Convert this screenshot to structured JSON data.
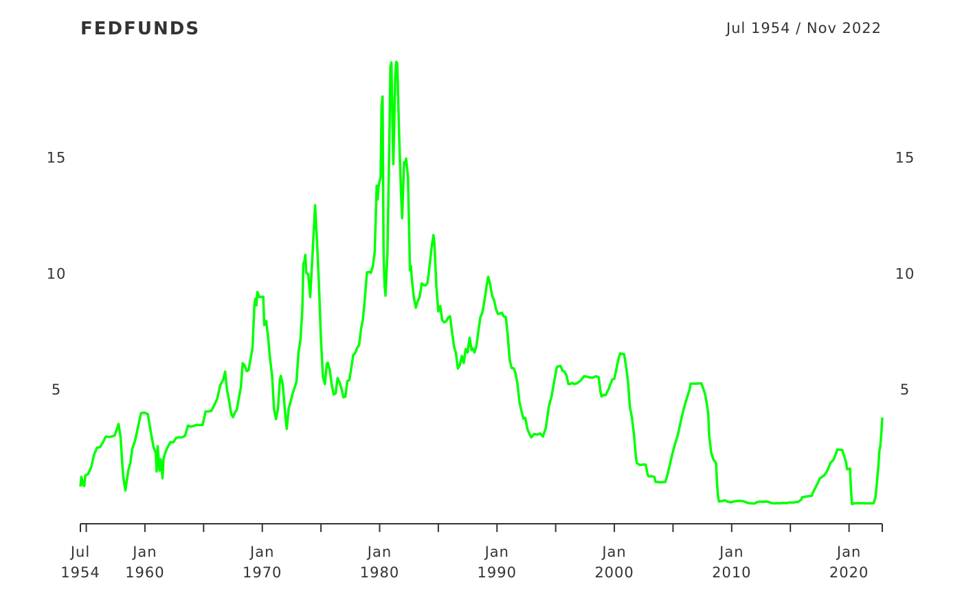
{
  "chart_data": {
    "type": "line",
    "title": "FEDFUNDS",
    "subtitle": "Jul 1954 / Nov 2022",
    "color": "#00ff00",
    "xlim": [
      "1954-07",
      "2022-11"
    ],
    "ylim": [
      -0.8,
      19.4
    ],
    "yticks": [
      5,
      10,
      15
    ],
    "xticks": [
      {
        "value": "1954-07",
        "label": "Jul 1954"
      },
      {
        "value": "1960-01",
        "label": "Jan 1960"
      },
      {
        "value": "1970-01",
        "label": "Jan 1970"
      },
      {
        "value": "1980-01",
        "label": "Jan 1980"
      },
      {
        "value": "1990-01",
        "label": "Jan 1990"
      },
      {
        "value": "2000-01",
        "label": "Jan 2000"
      },
      {
        "value": "2010-01",
        "label": "Jan 2010"
      },
      {
        "value": "2020-01",
        "label": "Jan 2020"
      }
    ],
    "xticks_minor": [
      "1955-01",
      "1965-01",
      "1975-01",
      "1985-01",
      "1995-01",
      "2005-01",
      "2015-01",
      "2022-11"
    ],
    "x": [
      "1954-07",
      "1954-08",
      "1954-09",
      "1954-10",
      "1954-11",
      "1954-12",
      "1955-03",
      "1955-06",
      "1955-09",
      "1955-12",
      "1956-03",
      "1956-06",
      "1956-09",
      "1956-12",
      "1957-03",
      "1957-06",
      "1957-08",
      "1957-10",
      "1957-12",
      "1958-02",
      "1958-03",
      "1958-05",
      "1958-06",
      "1958-08",
      "1958-10",
      "1958-12",
      "1959-03",
      "1959-06",
      "1959-09",
      "1959-12",
      "1960-02",
      "1960-04",
      "1960-06",
      "1960-08",
      "1960-10",
      "1960-12",
      "1961-01",
      "1961-02",
      "1961-03",
      "1961-04",
      "1961-05",
      "1961-06",
      "1961-07",
      "1961-08",
      "1961-10",
      "1961-12",
      "1962-03",
      "1962-06",
      "1962-09",
      "1962-12",
      "1963-03",
      "1963-06",
      "1963-09",
      "1963-12",
      "1964-03",
      "1964-06",
      "1964-09",
      "1964-12",
      "1965-03",
      "1965-06",
      "1965-09",
      "1965-12",
      "1966-03",
      "1966-06",
      "1966-09",
      "1966-11",
      "1967-01",
      "1967-03",
      "1967-05",
      "1967-07",
      "1967-09",
      "1967-11",
      "1968-01",
      "1968-03",
      "1968-05",
      "1968-07",
      "1968-09",
      "1968-11",
      "1969-01",
      "1969-03",
      "1969-05",
      "1969-06",
      "1969-07",
      "1969-08",
      "1969-10",
      "1969-12",
      "1970-01",
      "1970-02",
      "1970-03",
      "1970-05",
      "1970-07",
      "1970-09",
      "1970-11",
      "1971-01",
      "1971-03",
      "1971-05",
      "1971-07",
      "1971-08",
      "1971-10",
      "1971-12",
      "1972-02",
      "1972-04",
      "1972-06",
      "1972-08",
      "1972-10",
      "1972-12",
      "1973-02",
      "1973-04",
      "1973-06",
      "1973-07",
      "1973-08",
      "1973-09",
      "1973-10",
      "1973-12",
      "1974-02",
      "1974-04",
      "1974-07",
      "1974-09",
      "1974-11",
      "1975-01",
      "1975-03",
      "1975-05",
      "1975-07",
      "1975-08",
      "1975-10",
      "1975-12",
      "1976-02",
      "1976-04",
      "1976-06",
      "1976-08",
      "1976-10",
      "1976-12",
      "1977-02",
      "1977-04",
      "1977-06",
      "1977-08",
      "1977-10",
      "1977-12",
      "1978-02",
      "1978-04",
      "1978-06",
      "1978-08",
      "1978-10",
      "1978-12",
      "1979-02",
      "1979-04",
      "1979-06",
      "1979-08",
      "1979-10",
      "1979-11",
      "1979-12",
      "1980-02",
      "1980-03",
      "1980-04",
      "1980-05",
      "1980-06",
      "1980-07",
      "1980-09",
      "1980-11",
      "1980-12",
      "1981-01",
      "1981-03",
      "1981-05",
      "1981-06",
      "1981-07",
      "1981-09",
      "1981-11",
      "1981-12",
      "1982-02",
      "1982-03",
      "1982-04",
      "1982-06",
      "1982-08",
      "1982-09",
      "1982-10",
      "1982-12",
      "1983-02",
      "1983-04",
      "1983-06",
      "1983-08",
      "1983-10",
      "1983-12",
      "1984-02",
      "1984-04",
      "1984-06",
      "1984-08",
      "1984-09",
      "1984-11",
      "1985-01",
      "1985-03",
      "1985-05",
      "1985-07",
      "1985-09",
      "1985-11",
      "1986-01",
      "1986-03",
      "1986-05",
      "1986-07",
      "1986-09",
      "1986-11",
      "1987-01",
      "1987-03",
      "1987-05",
      "1987-07",
      "1987-09",
      "1987-11",
      "1987-12",
      "1988-02",
      "1988-04",
      "1988-06",
      "1988-08",
      "1988-10",
      "1988-12",
      "1989-02",
      "1989-04",
      "1989-06",
      "1989-08",
      "1989-10",
      "1989-12",
      "1990-02",
      "1990-04",
      "1990-06",
      "1990-08",
      "1990-10",
      "1990-12",
      "1991-02",
      "1991-04",
      "1991-06",
      "1991-08",
      "1991-10",
      "1991-12",
      "1992-02",
      "1992-04",
      "1992-06",
      "1992-08",
      "1992-10",
      "1992-12",
      "1993-03",
      "1993-06",
      "1993-09",
      "1993-12",
      "1994-03",
      "1994-06",
      "1994-09",
      "1994-12",
      "1995-02",
      "1995-03",
      "1995-06",
      "1995-08",
      "1995-10",
      "1995-12",
      "1996-02",
      "1996-04",
      "1996-06",
      "1996-08",
      "1996-10",
      "1996-12",
      "1997-03",
      "1997-06",
      "1997-09",
      "1997-12",
      "1998-03",
      "1998-06",
      "1998-09",
      "1998-11",
      "1998-12",
      "1999-02",
      "1999-04",
      "1999-07",
      "1999-09",
      "1999-11",
      "2000-01",
      "2000-03",
      "2000-05",
      "2000-07",
      "2000-09",
      "2000-11",
      "2001-01",
      "2001-03",
      "2001-05",
      "2001-07",
      "2001-09",
      "2001-11",
      "2001-12",
      "2002-03",
      "2002-06",
      "2002-09",
      "2002-11",
      "2002-12",
      "2003-03",
      "2003-06",
      "2003-07",
      "2003-12",
      "2004-05",
      "2004-07",
      "2004-09",
      "2004-12",
      "2005-03",
      "2005-06",
      "2005-09",
      "2005-12",
      "2006-03",
      "2006-06",
      "2006-07",
      "2006-12",
      "2007-06",
      "2007-08",
      "2007-10",
      "2007-12",
      "2008-01",
      "2008-02",
      "2008-04",
      "2008-06",
      "2008-09",
      "2008-10",
      "2008-11",
      "2008-12",
      "2009-03",
      "2009-06",
      "2009-09",
      "2009-12",
      "2010-03",
      "2010-06",
      "2010-09",
      "2010-12",
      "2011-03",
      "2011-06",
      "2011-09",
      "2011-12",
      "2012-03",
      "2012-06",
      "2012-09",
      "2012-12",
      "2013-03",
      "2013-06",
      "2013-09",
      "2013-12",
      "2014-03",
      "2014-06",
      "2014-09",
      "2014-12",
      "2015-03",
      "2015-06",
      "2015-09",
      "2015-12",
      "2016-01",
      "2016-06",
      "2016-11",
      "2016-12",
      "2017-03",
      "2017-06",
      "2017-07",
      "2017-12",
      "2018-03",
      "2018-06",
      "2018-09",
      "2018-12",
      "2019-01",
      "2019-06",
      "2019-08",
      "2019-10",
      "2019-11",
      "2020-02",
      "2020-03",
      "2020-04",
      "2020-06",
      "2020-12",
      "2021-06",
      "2021-12",
      "2022-02",
      "2022-03",
      "2022-04",
      "2022-05",
      "2022-06",
      "2022-07",
      "2022-08",
      "2022-09",
      "2022-10",
      "2022-11"
    ],
    "values": [
      0.8,
      1.22,
      1.06,
      0.85,
      0.83,
      1.28,
      1.35,
      1.64,
      2.18,
      2.48,
      2.5,
      2.71,
      2.96,
      2.94,
      2.96,
      3.0,
      3.24,
      3.5,
      2.98,
      1.67,
      1.2,
      0.63,
      0.93,
      1.5,
      1.8,
      2.42,
      2.8,
      3.39,
      3.97,
      3.99,
      3.97,
      3.92,
      3.39,
      2.92,
      2.47,
      2.27,
      1.45,
      2.54,
      2.02,
      1.49,
      1.98,
      1.73,
      1.16,
      2.0,
      2.29,
      2.48,
      2.72,
      2.71,
      2.9,
      2.93,
      2.92,
      2.99,
      3.43,
      3.38,
      3.42,
      3.46,
      3.45,
      3.46,
      4.04,
      4.04,
      4.07,
      4.32,
      4.6,
      5.17,
      5.4,
      5.76,
      4.94,
      4.53,
      3.98,
      3.79,
      3.99,
      4.12,
      4.61,
      5.05,
      6.12,
      6.02,
      5.78,
      5.82,
      6.3,
      6.79,
      8.67,
      8.9,
      8.61,
      9.19,
      8.97,
      8.97,
      8.98,
      8.98,
      7.76,
      7.94,
      7.21,
      6.29,
      5.6,
      4.14,
      3.71,
      4.15,
      5.4,
      5.57,
      5.2,
      4.14,
      3.29,
      4.17,
      4.46,
      4.81,
      5.06,
      5.33,
      6.58,
      7.12,
      8.49,
      10.4,
      10.5,
      10.78,
      10.01,
      9.95,
      8.97,
      10.51,
      12.92,
      11.34,
      9.45,
      7.13,
      5.54,
      5.22,
      6.1,
      6.14,
      5.82,
      5.2,
      4.77,
      4.82,
      5.48,
      5.29,
      5.02,
      4.65,
      4.68,
      5.35,
      5.39,
      5.9,
      6.47,
      6.56,
      6.78,
      6.9,
      7.6,
      8.04,
      8.96,
      10.03,
      10.06,
      10.01,
      10.29,
      10.94,
      13.77,
      13.18,
      13.78,
      14.13,
      17.19,
      17.61,
      10.98,
      9.47,
      9.03,
      10.87,
      15.85,
      18.9,
      19.08,
      14.7,
      18.52,
      19.1,
      19.04,
      15.87,
      13.31,
      12.37,
      14.78,
      14.68,
      14.94,
      14.15,
      10.12,
      10.31,
      9.71,
      8.95,
      8.51,
      8.8,
      8.98,
      9.56,
      9.48,
      9.47,
      9.59,
      10.29,
      11.06,
      11.64,
      11.3,
      9.43,
      8.35,
      8.58,
      7.97,
      7.88,
      7.92,
      8.08,
      8.14,
      7.48,
      6.85,
      6.56,
      5.89,
      6.04,
      6.43,
      6.13,
      6.73,
      6.58,
      7.22,
      6.69,
      6.77,
      6.58,
      6.87,
      7.51,
      8.1,
      8.3,
      8.76,
      9.36,
      9.84,
      9.53,
      9.02,
      8.84,
      8.45,
      8.24,
      8.26,
      8.29,
      8.13,
      8.11,
      7.31,
      6.25,
      5.91,
      5.9,
      5.68,
      5.21,
      4.43,
      4.06,
      3.73,
      3.76,
      3.3,
      3.09,
      2.92,
      3.07,
      3.04,
      3.09,
      2.96,
      3.34,
      4.25,
      4.73,
      5.45,
      5.92,
      5.98,
      6.0,
      5.8,
      5.76,
      5.6,
      5.22,
      5.22,
      5.27,
      5.22,
      5.24,
      5.29,
      5.39,
      5.56,
      5.54,
      5.5,
      5.49,
      5.56,
      5.51,
      4.83,
      4.68,
      4.76,
      4.74,
      4.99,
      5.22,
      5.42,
      5.45,
      5.85,
      6.27,
      6.54,
      6.52,
      6.51,
      5.98,
      5.31,
      4.21,
      3.77,
      3.07,
      2.09,
      1.82,
      1.73,
      1.75,
      1.75,
      1.34,
      1.24,
      1.25,
      1.22,
      1.01,
      0.98,
      1.0,
      1.26,
      1.61,
      2.16,
      2.63,
      3.04,
      3.62,
      4.16,
      4.59,
      4.99,
      5.24,
      5.24,
      5.25,
      5.02,
      4.76,
      4.24,
      3.94,
      2.98,
      2.28,
      2.0,
      1.81,
      0.97,
      0.39,
      0.16,
      0.18,
      0.21,
      0.15,
      0.12,
      0.16,
      0.18,
      0.19,
      0.18,
      0.14,
      0.09,
      0.08,
      0.07,
      0.13,
      0.16,
      0.14,
      0.16,
      0.14,
      0.09,
      0.08,
      0.09,
      0.08,
      0.1,
      0.09,
      0.12,
      0.11,
      0.13,
      0.14,
      0.24,
      0.34,
      0.38,
      0.41,
      0.54,
      0.79,
      1.04,
      1.15,
      1.3,
      1.51,
      1.82,
      1.95,
      2.27,
      2.4,
      2.38,
      2.13,
      1.83,
      1.55,
      1.58,
      0.65,
      0.05,
      0.08,
      0.09,
      0.08,
      0.08,
      0.08,
      0.2,
      0.33,
      0.77,
      1.21,
      1.68,
      2.33,
      2.56,
      3.08,
      3.78
    ]
  }
}
